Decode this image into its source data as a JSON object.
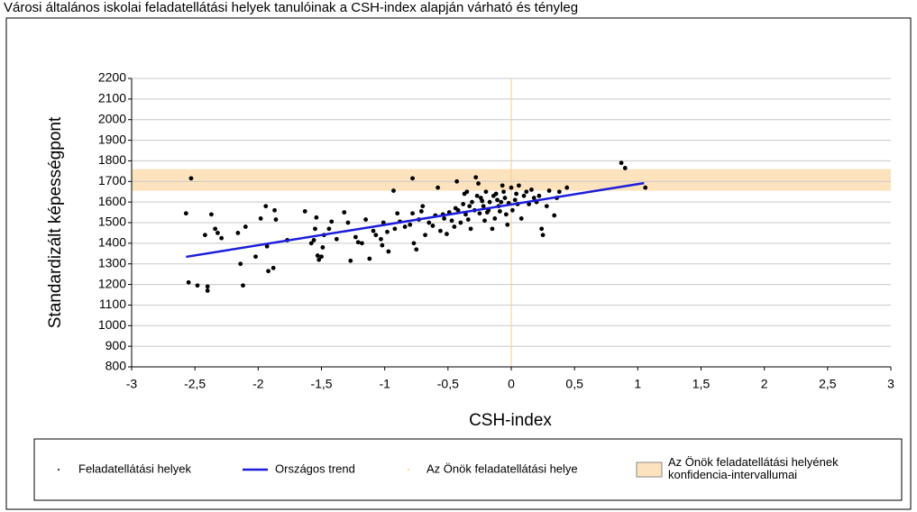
{
  "chart_data": {
    "type": "scatter",
    "title": "Városi általános iskolai feladatellátási helyek tanulóinak a CSH-index alapján várható és tényleg",
    "x_label": "CSH-index",
    "y_label": "Standardizált képességpont",
    "xlim": [
      -3,
      3
    ],
    "xticks": [
      -3,
      {
        "value": -2.5,
        "label": "-2,5"
      },
      -2,
      {
        "value": -1.5,
        "label": "-1,5"
      },
      -1,
      {
        "value": -0.5,
        "label": "-0,5"
      },
      0,
      {
        "value": 0.5,
        "label": "0,5"
      },
      1,
      {
        "value": 1.5,
        "label": "1,5"
      },
      2,
      {
        "value": 2.5,
        "label": "2,5"
      },
      3
    ],
    "ylim": [
      800,
      2200
    ],
    "yticks": [
      800,
      900,
      1000,
      1100,
      1200,
      1300,
      1400,
      1500,
      1600,
      1700,
      1800,
      1900,
      2000,
      2100,
      2200
    ],
    "grid": true,
    "band": {
      "name": "Az Önök feladatellátási helyének konfidencia-intervallumai",
      "color": "#fde3bd",
      "range": [
        1655,
        1760
      ]
    },
    "reference_line": {
      "name": "Az Önök feladatellátási helye",
      "color": "#ffc98a",
      "x": 0
    },
    "series": [
      {
        "name": "Feladatellátási helyek",
        "color": "#000000",
        "kind": "points",
        "x": [
          -2.57,
          -2.55,
          -2.53,
          -2.48,
          -2.42,
          -2.4,
          -2.4,
          -2.37,
          -2.34,
          -2.32,
          -2.29,
          -2.16,
          -2.14,
          -2.12,
          -2.1,
          -2.02,
          -1.98,
          -1.94,
          -1.93,
          -1.92,
          -1.88,
          -1.86,
          -1.87,
          -1.77,
          -1.63,
          -1.58,
          -1.56,
          -1.55,
          -1.54,
          -1.53,
          -1.52,
          -1.5,
          -1.49,
          -1.48,
          -1.44,
          -1.42,
          -1.38,
          -1.32,
          -1.29,
          -1.27,
          -1.23,
          -1.21,
          -1.18,
          -1.15,
          -1.12,
          -1.09,
          -1.07,
          -1.03,
          -1.02,
          -1.01,
          -0.98,
          -0.97,
          -0.93,
          -0.92,
          -0.9,
          -0.88,
          -0.84,
          -0.8,
          -0.78,
          -0.78,
          -0.77,
          -0.75,
          -0.73,
          -0.71,
          -0.7,
          -0.68,
          -0.65,
          -0.62,
          -0.6,
          -0.58,
          -0.56,
          -0.53,
          -0.51,
          -0.49,
          -0.47,
          -0.45,
          -0.43,
          -0.42,
          -0.4,
          -0.38,
          -0.37,
          -0.36,
          -0.34,
          -0.32,
          -0.31,
          -0.29,
          -0.28,
          -0.27,
          -0.26,
          -0.25,
          -0.24,
          -0.22,
          -0.21,
          -0.2,
          -0.18,
          -0.17,
          -0.15,
          -0.14,
          -0.13,
          -0.12,
          -0.1,
          -0.09,
          -0.08,
          -0.07,
          -0.05,
          -0.04,
          -0.03,
          -0.02,
          0,
          0.01,
          0.03,
          0.05,
          0.06,
          0.08,
          0.1,
          0.12,
          0.14,
          0.16,
          0.18,
          0.2,
          0.22,
          0.24,
          0.25,
          0.28,
          0.3,
          0.34,
          0.36,
          0.38,
          0.44,
          0.87,
          0.9,
          1.06,
          -0.54,
          -0.44,
          -0.33,
          -0.19,
          -0.11,
          0.04,
          -0.06,
          -0.23,
          -0.35
        ],
        "values": [
          1545,
          1210,
          1715,
          1195,
          1440,
          1190,
          1170,
          1540,
          1470,
          1450,
          1425,
          1450,
          1300,
          1195,
          1480,
          1335,
          1520,
          1580,
          1385,
          1265,
          1280,
          1515,
          1560,
          1415,
          1555,
          1400,
          1415,
          1470,
          1525,
          1340,
          1320,
          1335,
          1380,
          1440,
          1470,
          1505,
          1420,
          1550,
          1500,
          1315,
          1430,
          1405,
          1400,
          1515,
          1325,
          1460,
          1440,
          1420,
          1390,
          1500,
          1455,
          1360,
          1655,
          1470,
          1545,
          1505,
          1480,
          1490,
          1715,
          1545,
          1400,
          1370,
          1515,
          1555,
          1580,
          1440,
          1500,
          1485,
          1535,
          1670,
          1460,
          1520,
          1445,
          1550,
          1510,
          1480,
          1700,
          1560,
          1500,
          1590,
          1640,
          1540,
          1515,
          1470,
          1600,
          1560,
          1720,
          1630,
          1690,
          1545,
          1620,
          1580,
          1510,
          1650,
          1560,
          1600,
          1470,
          1630,
          1520,
          1640,
          1580,
          1555,
          1600,
          1680,
          1620,
          1540,
          1490,
          1595,
          1670,
          1560,
          1610,
          1590,
          1680,
          1520,
          1630,
          1650,
          1590,
          1660,
          1620,
          1600,
          1630,
          1470,
          1440,
          1580,
          1655,
          1535,
          1620,
          1650,
          1670,
          1790,
          1765,
          1670,
          1540,
          1570,
          1580,
          1550,
          1610,
          1640,
          1650,
          1605,
          1650
        ]
      },
      {
        "name": "Országos trend",
        "color": "#1c1cdc",
        "kind": "line",
        "x": [
          -2.57,
          1.05
        ],
        "values": [
          1334,
          1692
        ]
      }
    ]
  }
}
